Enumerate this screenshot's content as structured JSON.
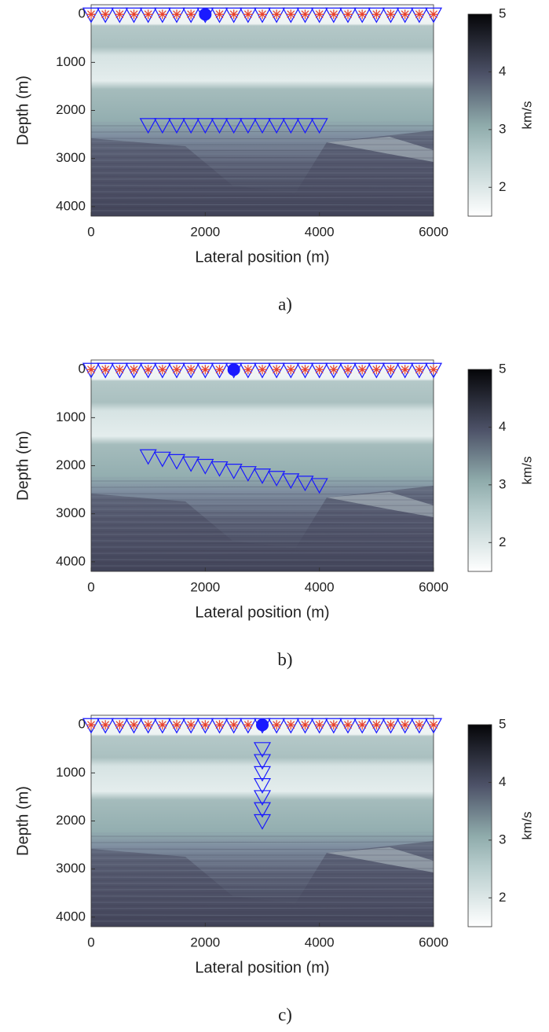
{
  "chart_data": [
    {
      "type": "scatter",
      "caption": "a)",
      "xlabel": "Lateral position (m)",
      "ylabel": "Depth (m)",
      "xlim": [
        0,
        6000
      ],
      "ylim": [
        -200,
        4200
      ],
      "xticks": [
        0,
        2000,
        4000,
        6000
      ],
      "yticks": [
        0,
        1000,
        2000,
        3000,
        4000
      ],
      "colorbar": {
        "label": "km/s",
        "lim": [
          1.5,
          5
        ],
        "ticks": [
          2,
          3,
          4,
          5
        ]
      },
      "series": [
        {
          "marker": "triangle",
          "color": "#1a1aff",
          "x": [
            0,
            250,
            500,
            750,
            1000,
            1250,
            1500,
            1750,
            2000,
            2250,
            2500,
            2750,
            3000,
            3250,
            3500,
            3750,
            4000,
            4250,
            4500,
            4750,
            5000,
            5250,
            5500,
            5750,
            6000
          ],
          "y": [
            0,
            0,
            0,
            0,
            0,
            0,
            0,
            0,
            0,
            0,
            0,
            0,
            0,
            0,
            0,
            0,
            0,
            0,
            0,
            0,
            0,
            0,
            0,
            0,
            0
          ]
        },
        {
          "marker": "star",
          "color": "#e8402a",
          "x": [
            0,
            250,
            500,
            750,
            1000,
            1250,
            1500,
            1750,
            2000,
            2250,
            2500,
            2750,
            3000,
            3250,
            3500,
            3750,
            4000,
            4250,
            4500,
            4750,
            5000,
            5250,
            5500,
            5750,
            6000
          ],
          "y": [
            0,
            0,
            0,
            0,
            0,
            0,
            0,
            0,
            0,
            0,
            0,
            0,
            0,
            0,
            0,
            0,
            0,
            0,
            0,
            0,
            0,
            0,
            0,
            0,
            0
          ]
        },
        {
          "marker": "circle",
          "color": "#1a1aff",
          "x": [
            2000
          ],
          "y": [
            0
          ]
        },
        {
          "marker": "triangle",
          "color": "#1a1aff",
          "x": [
            1000,
            1250,
            1500,
            1750,
            2000,
            2250,
            2500,
            2750,
            3000,
            3250,
            3500,
            3750,
            4000
          ],
          "y": [
            2300,
            2300,
            2300,
            2300,
            2300,
            2300,
            2300,
            2300,
            2300,
            2300,
            2300,
            2300,
            2300
          ]
        }
      ]
    },
    {
      "type": "scatter",
      "caption": "b)",
      "xlabel": "Lateral position (m)",
      "ylabel": "Depth (m)",
      "xlim": [
        0,
        6000
      ],
      "ylim": [
        -200,
        4200
      ],
      "xticks": [
        0,
        2000,
        4000,
        6000
      ],
      "yticks": [
        0,
        1000,
        2000,
        3000,
        4000
      ],
      "colorbar": {
        "label": "km/s",
        "lim": [
          1.5,
          5
        ],
        "ticks": [
          2,
          3,
          4,
          5
        ]
      },
      "series": [
        {
          "marker": "triangle",
          "color": "#1a1aff",
          "x": [
            0,
            250,
            500,
            750,
            1000,
            1250,
            1500,
            1750,
            2000,
            2250,
            2500,
            2750,
            3000,
            3250,
            3500,
            3750,
            4000,
            4250,
            4500,
            4750,
            5000,
            5250,
            5500,
            5750,
            6000
          ],
          "y": [
            0,
            0,
            0,
            0,
            0,
            0,
            0,
            0,
            0,
            0,
            0,
            0,
            0,
            0,
            0,
            0,
            0,
            0,
            0,
            0,
            0,
            0,
            0,
            0,
            0
          ]
        },
        {
          "marker": "star",
          "color": "#e8402a",
          "x": [
            0,
            250,
            500,
            750,
            1000,
            1250,
            1500,
            1750,
            2000,
            2250,
            2500,
            2750,
            3000,
            3250,
            3500,
            3750,
            4000,
            4250,
            4500,
            4750,
            5000,
            5250,
            5500,
            5750,
            6000
          ],
          "y": [
            0,
            0,
            0,
            0,
            0,
            0,
            0,
            0,
            0,
            0,
            0,
            0,
            0,
            0,
            0,
            0,
            0,
            0,
            0,
            0,
            0,
            0,
            0,
            0,
            0
          ]
        },
        {
          "marker": "circle",
          "color": "#1a1aff",
          "x": [
            2500
          ],
          "y": [
            0
          ]
        },
        {
          "marker": "triangle",
          "color": "#1a1aff",
          "x": [
            1000,
            1250,
            1500,
            1750,
            2000,
            2250,
            2500,
            2750,
            3000,
            3250,
            3500,
            3750,
            4000
          ],
          "y": [
            1800,
            1850,
            1900,
            1950,
            2000,
            2050,
            2100,
            2150,
            2200,
            2250,
            2300,
            2350,
            2400
          ]
        }
      ]
    },
    {
      "type": "scatter",
      "caption": "c)",
      "xlabel": "Lateral position (m)",
      "ylabel": "Depth (m)",
      "xlim": [
        0,
        6000
      ],
      "ylim": [
        -200,
        4200
      ],
      "xticks": [
        0,
        2000,
        4000,
        6000
      ],
      "yticks": [
        0,
        1000,
        2000,
        3000,
        4000
      ],
      "colorbar": {
        "label": "km/s",
        "lim": [
          1.5,
          5
        ],
        "ticks": [
          2,
          3,
          4,
          5
        ]
      },
      "series": [
        {
          "marker": "triangle",
          "color": "#1a1aff",
          "x": [
            0,
            250,
            500,
            750,
            1000,
            1250,
            1500,
            1750,
            2000,
            2250,
            2500,
            2750,
            3000,
            3250,
            3500,
            3750,
            4000,
            4250,
            4500,
            4750,
            5000,
            5250,
            5500,
            5750,
            6000
          ],
          "y": [
            0,
            0,
            0,
            0,
            0,
            0,
            0,
            0,
            0,
            0,
            0,
            0,
            0,
            0,
            0,
            0,
            0,
            0,
            0,
            0,
            0,
            0,
            0,
            0,
            0
          ]
        },
        {
          "marker": "star",
          "color": "#e8402a",
          "x": [
            0,
            250,
            500,
            750,
            1000,
            1250,
            1500,
            1750,
            2000,
            2250,
            2500,
            2750,
            3000,
            3250,
            3500,
            3750,
            4000,
            4250,
            4500,
            4750,
            5000,
            5250,
            5500,
            5750,
            6000
          ],
          "y": [
            0,
            0,
            0,
            0,
            0,
            0,
            0,
            0,
            0,
            0,
            0,
            0,
            0,
            0,
            0,
            0,
            0,
            0,
            0,
            0,
            0,
            0,
            0,
            0,
            0
          ]
        },
        {
          "marker": "circle",
          "color": "#1a1aff",
          "x": [
            3000
          ],
          "y": [
            0
          ]
        },
        {
          "marker": "triangle",
          "color": "#1a1aff",
          "x": [
            3000,
            3000,
            3000,
            3000,
            3000,
            3000,
            3000
          ],
          "y": [
            500,
            750,
            1000,
            1250,
            1500,
            1750,
            2000
          ]
        }
      ]
    }
  ]
}
